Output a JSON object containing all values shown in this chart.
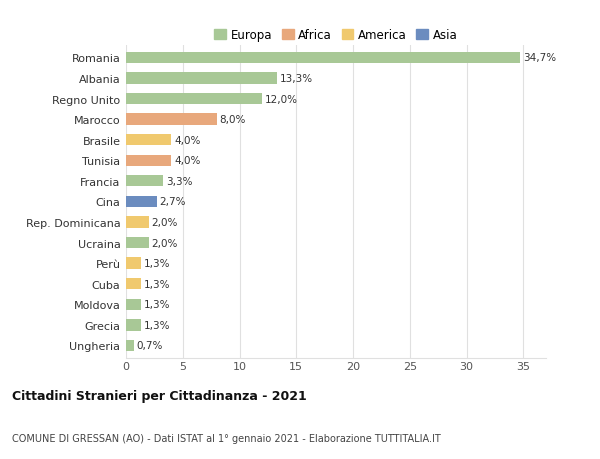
{
  "countries": [
    "Romania",
    "Albania",
    "Regno Unito",
    "Marocco",
    "Brasile",
    "Tunisia",
    "Francia",
    "Cina",
    "Rep. Dominicana",
    "Ucraina",
    "Perù",
    "Cuba",
    "Moldova",
    "Grecia",
    "Ungheria"
  ],
  "values": [
    34.7,
    13.3,
    12.0,
    8.0,
    4.0,
    4.0,
    3.3,
    2.7,
    2.0,
    2.0,
    1.3,
    1.3,
    1.3,
    1.3,
    0.7
  ],
  "labels": [
    "34,7%",
    "13,3%",
    "12,0%",
    "8,0%",
    "4,0%",
    "4,0%",
    "3,3%",
    "2,7%",
    "2,0%",
    "2,0%",
    "1,3%",
    "1,3%",
    "1,3%",
    "1,3%",
    "0,7%"
  ],
  "continents": [
    "Europa",
    "Europa",
    "Europa",
    "Africa",
    "America",
    "Africa",
    "Europa",
    "Asia",
    "America",
    "Europa",
    "America",
    "America",
    "Europa",
    "Europa",
    "Europa"
  ],
  "colors": {
    "Europa": "#a8c896",
    "Africa": "#e8a87c",
    "America": "#f0c96e",
    "Asia": "#6b8cbf"
  },
  "legend_colors": {
    "Europa": "#a8c896",
    "Africa": "#e8a87c",
    "America": "#f0c96e",
    "Asia": "#6b8cbf"
  },
  "xlim": [
    0,
    37
  ],
  "xticks": [
    0,
    5,
    10,
    15,
    20,
    25,
    30,
    35
  ],
  "title": "Cittadini Stranieri per Cittadinanza - 2021",
  "subtitle": "COMUNE DI GRESSAN (AO) - Dati ISTAT al 1° gennaio 2021 - Elaborazione TUTTITALIA.IT",
  "background_color": "#ffffff",
  "grid_color": "#e0e0e0"
}
